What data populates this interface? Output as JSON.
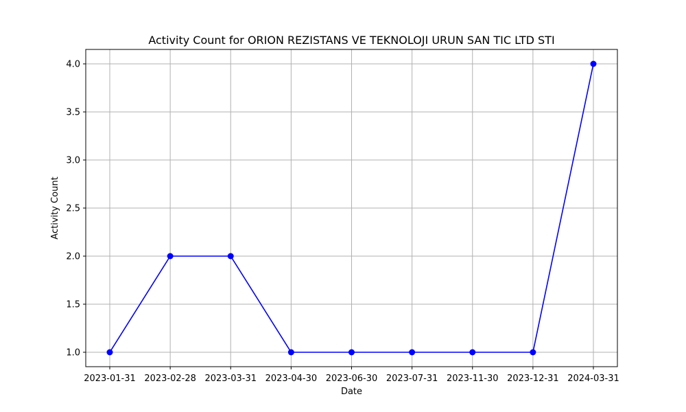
{
  "chart_data": {
    "type": "line",
    "title": "Activity Count for ORION REZISTANS VE TEKNOLOJI URUN SAN TIC LTD STI",
    "xlabel": "Date",
    "ylabel": "Activity Count",
    "categories": [
      "2023-01-31",
      "2023-02-28",
      "2023-03-31",
      "2023-04-30",
      "2023-06-30",
      "2023-07-31",
      "2023-11-30",
      "2023-12-31",
      "2024-03-31"
    ],
    "series": [
      {
        "values": [
          1,
          2,
          2,
          1,
          1,
          1,
          1,
          1,
          4
        ]
      }
    ],
    "ylim": [
      0.85,
      4.15
    ],
    "yticks": [
      "1.0",
      "1.5",
      "2.0",
      "2.5",
      "3.0",
      "3.5",
      "4.0"
    ],
    "grid": true,
    "line_color": "#0000ff",
    "marker": "circle"
  }
}
